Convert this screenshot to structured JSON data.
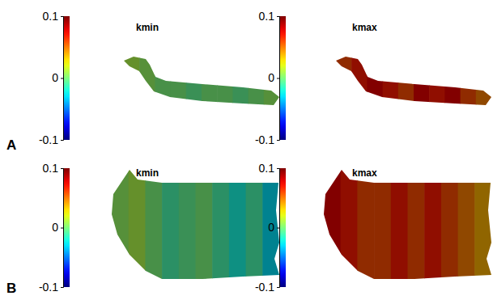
{
  "chart_data": [
    {
      "type": "surface",
      "panel": "A",
      "title": "kmin",
      "color_range": [
        -0.1,
        0.1
      ],
      "color_ticks": [
        -0.1,
        0,
        0.1
      ],
      "cells": [
        0.01,
        0.005,
        0,
        0,
        -0.005,
        0,
        0,
        -0.005,
        0,
        0.005
      ]
    },
    {
      "type": "surface",
      "title": "kmax",
      "color_range": [
        -0.1,
        0.1
      ],
      "color_ticks": [
        -0.1,
        0,
        0.1
      ],
      "cells": [
        0.06,
        0.07,
        0.08,
        0.07,
        0.06,
        0.08,
        0.07,
        0.08,
        0.06,
        0.05
      ]
    },
    {
      "type": "surface",
      "panel": "B",
      "title": "kmin",
      "color_range": [
        -0.1,
        0.1
      ],
      "color_ticks": [
        -0.1,
        0,
        0.1
      ],
      "cells": [
        0.005,
        0.01,
        0,
        -0.01,
        -0.005,
        0,
        -0.01,
        -0.02,
        -0.01,
        -0.03
      ]
    },
    {
      "type": "surface",
      "title": "kmax",
      "color_range": [
        -0.1,
        0.1
      ],
      "color_ticks": [
        -0.1,
        0,
        0.1
      ],
      "cells": [
        0.08,
        0.07,
        0.06,
        0.06,
        0.07,
        0.06,
        0.07,
        0.06,
        0.05,
        0.04
      ]
    }
  ]
}
